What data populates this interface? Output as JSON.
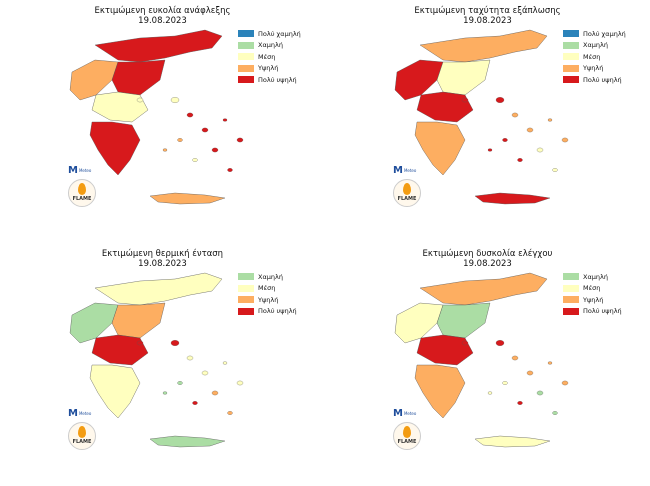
{
  "panels": [
    {
      "title": "Εκτιμώμενη ευκολία ανάφλεξης",
      "date": "19.08.2023",
      "legend": [
        {
          "label": "Πολύ χαμηλή",
          "color": "#2b83ba"
        },
        {
          "label": "Χαμηλή",
          "color": "#abdda4"
        },
        {
          "label": "Μέση",
          "color": "#ffffbf"
        },
        {
          "label": "Υψηλή",
          "color": "#fdae61"
        },
        {
          "label": "Πολύ υψηλή",
          "color": "#d7191c"
        }
      ],
      "palette": [
        "#d7191c",
        "#fdae61",
        "#d7191c",
        "#ffffbf",
        "#d7191c"
      ]
    },
    {
      "title": "Εκτιμώμενη ταχύτητα εξάπλωσης",
      "date": "19.08.2023",
      "legend": [
        {
          "label": "Πολύ χαμηλή",
          "color": "#2b83ba"
        },
        {
          "label": "Χαμηλή",
          "color": "#abdda4"
        },
        {
          "label": "Μέση",
          "color": "#ffffbf"
        },
        {
          "label": "Υψηλή",
          "color": "#fdae61"
        },
        {
          "label": "Πολύ υψηλή",
          "color": "#d7191c"
        }
      ],
      "palette": [
        "#fdae61",
        "#d7191c",
        "#ffffbf",
        "#d7191c",
        "#fdae61"
      ]
    },
    {
      "title": "Εκτιμώμενη θερμική ένταση",
      "date": "19.08.2023",
      "legend": [
        {
          "label": "Χαμηλή",
          "color": "#abdda4"
        },
        {
          "label": "Μέση",
          "color": "#ffffbf"
        },
        {
          "label": "Υψηλή",
          "color": "#fdae61"
        },
        {
          "label": "Πολύ υψηλή",
          "color": "#d7191c"
        }
      ],
      "palette": [
        "#ffffbf",
        "#abdda4",
        "#fdae61",
        "#d7191c",
        "#ffffbf"
      ]
    },
    {
      "title": "Εκτιμώμενη δυσκολία ελέγχου",
      "date": "19.08.2023",
      "legend": [
        {
          "label": "Χαμηλή",
          "color": "#abdda4"
        },
        {
          "label": "Μέση",
          "color": "#ffffbf"
        },
        {
          "label": "Υψηλή",
          "color": "#fdae61"
        },
        {
          "label": "Πολύ υψηλή",
          "color": "#d7191c"
        }
      ],
      "palette": [
        "#fdae61",
        "#ffffbf",
        "#abdda4",
        "#d7191c",
        "#fdae61"
      ]
    }
  ],
  "logos": {
    "meteo_mark": "M",
    "meteo_text": "Meteo",
    "flame_text": "FLAME"
  }
}
